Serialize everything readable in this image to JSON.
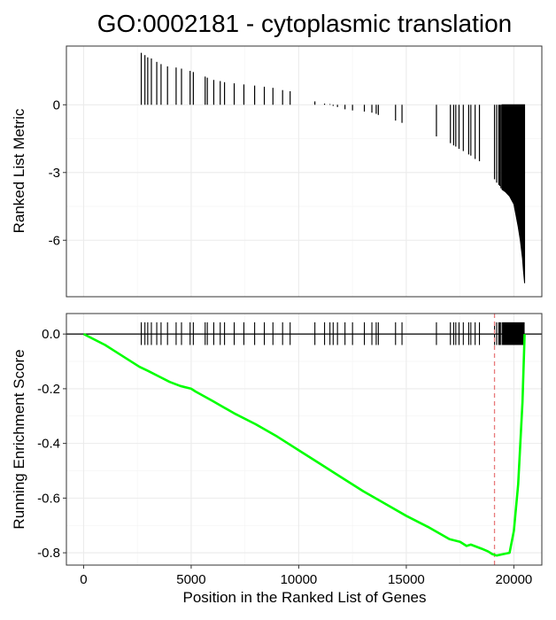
{
  "chart_data": {
    "type": "line",
    "title": "GO:0002181 - cytoplasmic translation",
    "xlabel": "Position in the Ranked List of Genes",
    "x_ticks": [
      0,
      5000,
      10000,
      15000,
      20000
    ],
    "xlim": [
      -800,
      21300
    ],
    "panels": [
      {
        "name": "ranked-metric",
        "type": "bar",
        "ylabel": "Ranked List Metric",
        "ylim": [
          -8.5,
          2.6
        ],
        "y_ticks": [
          0,
          -3,
          -6
        ],
        "hits": [
          {
            "x": 2680,
            "y": 2.3
          },
          {
            "x": 2850,
            "y": 2.2
          },
          {
            "x": 2980,
            "y": 2.1
          },
          {
            "x": 3150,
            "y": 2.05
          },
          {
            "x": 3400,
            "y": 1.9
          },
          {
            "x": 3600,
            "y": 1.8
          },
          {
            "x": 3900,
            "y": 1.7
          },
          {
            "x": 4300,
            "y": 1.65
          },
          {
            "x": 4550,
            "y": 1.6
          },
          {
            "x": 4950,
            "y": 1.5
          },
          {
            "x": 5100,
            "y": 1.45
          },
          {
            "x": 5650,
            "y": 1.25
          },
          {
            "x": 5750,
            "y": 1.2
          },
          {
            "x": 6050,
            "y": 1.1
          },
          {
            "x": 6350,
            "y": 1.05
          },
          {
            "x": 6550,
            "y": 1.0
          },
          {
            "x": 7000,
            "y": 0.95
          },
          {
            "x": 7450,
            "y": 0.9
          },
          {
            "x": 7950,
            "y": 0.85
          },
          {
            "x": 8400,
            "y": 0.8
          },
          {
            "x": 8800,
            "y": 0.75
          },
          {
            "x": 9250,
            "y": 0.65
          },
          {
            "x": 9600,
            "y": 0.6
          },
          {
            "x": 10750,
            "y": 0.15
          },
          {
            "x": 11200,
            "y": 0.05
          },
          {
            "x": 11450,
            "y": 0.03
          },
          {
            "x": 11600,
            "y": -0.05
          },
          {
            "x": 11800,
            "y": -0.1
          },
          {
            "x": 12150,
            "y": -0.2
          },
          {
            "x": 12500,
            "y": -0.25
          },
          {
            "x": 13050,
            "y": -0.3
          },
          {
            "x": 13400,
            "y": -0.35
          },
          {
            "x": 13600,
            "y": -0.4
          },
          {
            "x": 13700,
            "y": -0.45
          },
          {
            "x": 14500,
            "y": -0.7
          },
          {
            "x": 14800,
            "y": -0.8
          },
          {
            "x": 16400,
            "y": -1.4
          },
          {
            "x": 17050,
            "y": -1.7
          },
          {
            "x": 17200,
            "y": -1.8
          },
          {
            "x": 17300,
            "y": -1.85
          },
          {
            "x": 17450,
            "y": -1.95
          },
          {
            "x": 17650,
            "y": -2.05
          },
          {
            "x": 17900,
            "y": -2.2
          },
          {
            "x": 18000,
            "y": -2.25
          },
          {
            "x": 18200,
            "y": -2.4
          },
          {
            "x": 18400,
            "y": -2.5
          },
          {
            "x": 19100,
            "y": -3.3
          },
          {
            "x": 19200,
            "y": -3.45
          },
          {
            "x": 19300,
            "y": -3.55
          },
          {
            "x": 19350,
            "y": -3.6
          },
          {
            "x": 19400,
            "y": -3.7
          }
        ],
        "dense_block": {
          "x": [
            19450,
            19600,
            19800,
            20000,
            20100,
            20200,
            20300,
            20400,
            20450,
            20500
          ],
          "y": [
            -3.75,
            -3.85,
            -4.05,
            -4.4,
            -4.9,
            -5.4,
            -6.0,
            -6.8,
            -7.4,
            -7.9
          ]
        }
      },
      {
        "name": "running-enrichment",
        "type": "line",
        "ylabel": "Running Enrichment Score",
        "ylim": [
          -0.845,
          0.075
        ],
        "y_ticks": [
          0.0,
          -0.2,
          -0.4,
          -0.6,
          -0.8
        ],
        "y_tick_labels": [
          "0.0",
          "-0.2",
          "-0.4",
          "-0.6",
          "-0.8"
        ],
        "color": "#00ff00",
        "baseline": 0.0,
        "dashed_line_x": 19100,
        "dashed_line_color": "#e8797a",
        "x": [
          0,
          1000,
          2000,
          2600,
          3000,
          3500,
          4000,
          4500,
          5000,
          5200,
          6000,
          7000,
          8000,
          9000,
          10000,
          11000,
          12000,
          13000,
          14000,
          15000,
          16000,
          17000,
          17500,
          17800,
          18000,
          18500,
          18800,
          19000,
          19200,
          19500,
          19800,
          20000,
          20200,
          20400,
          20500
        ],
        "y": [
          0.0,
          -0.04,
          -0.09,
          -0.12,
          -0.135,
          -0.155,
          -0.175,
          -0.19,
          -0.2,
          -0.21,
          -0.245,
          -0.29,
          -0.33,
          -0.375,
          -0.425,
          -0.475,
          -0.525,
          -0.575,
          -0.62,
          -0.665,
          -0.705,
          -0.75,
          -0.76,
          -0.775,
          -0.77,
          -0.785,
          -0.795,
          -0.805,
          -0.81,
          -0.805,
          -0.8,
          -0.72,
          -0.55,
          -0.25,
          -0.0
        ]
      }
    ]
  }
}
